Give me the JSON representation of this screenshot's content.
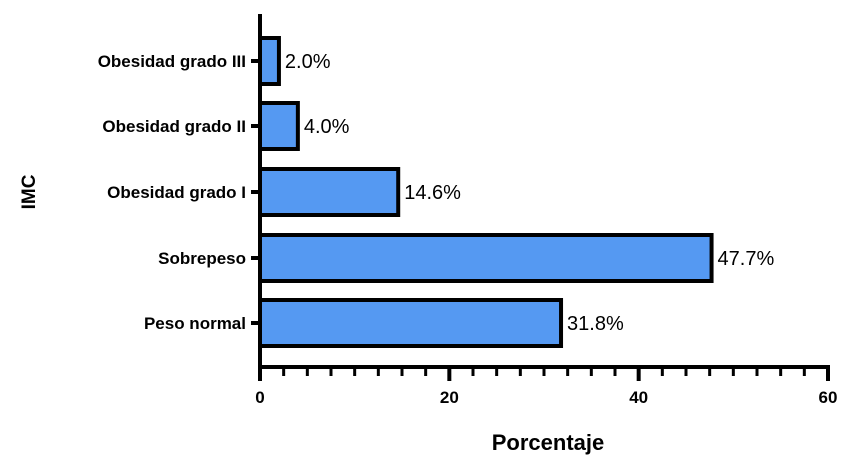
{
  "chart_data": {
    "type": "bar",
    "orientation": "horizontal",
    "categories": [
      "Peso normal",
      "Sobrepeso",
      "Obesidad grado I",
      "Obesidad grado II",
      "Obesidad grado III"
    ],
    "values": [
      31.8,
      47.7,
      14.6,
      4.0,
      2.0
    ],
    "data_labels": [
      "31.8%",
      "47.7%",
      "14.6%",
      "4.0%",
      "2.0%"
    ],
    "xlabel": "Porcentaje",
    "ylabel": "IMC",
    "xlim": [
      0,
      60
    ],
    "x_ticks": [
      0,
      20,
      40,
      60
    ],
    "x_minor_step": 2.5,
    "grid": false,
    "colors": {
      "bar_fill": "#5599f2",
      "bar_stroke": "#000000"
    }
  }
}
